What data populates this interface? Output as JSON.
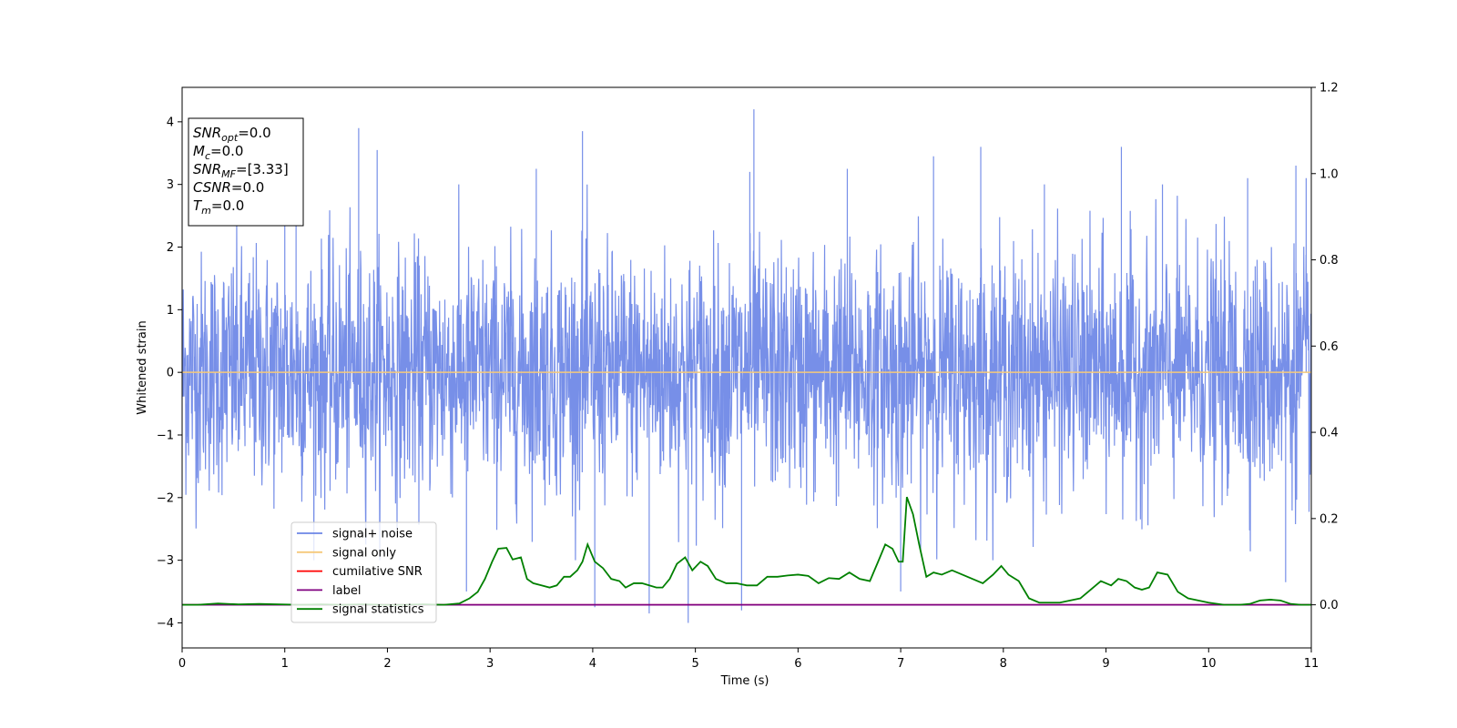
{
  "chart_data": {
    "type": "line",
    "xlabel": "Time (s)",
    "ylabel": "Whitened strain",
    "xlim": [
      0,
      11
    ],
    "ylim": [
      -4.4,
      4.55
    ],
    "y2lim": [
      -0.1,
      1.2
    ],
    "x_ticks": [
      0,
      1,
      2,
      3,
      4,
      5,
      6,
      7,
      8,
      9,
      10,
      11
    ],
    "y_ticks": [
      -4,
      -3,
      -2,
      -1,
      0,
      1,
      2,
      3,
      4
    ],
    "y_tick_labels": [
      "−4",
      "−3",
      "−2",
      "−1",
      "0",
      "1",
      "2",
      "3",
      "4"
    ],
    "y2_ticks": [
      0.0,
      0.2,
      0.4,
      0.6,
      0.8,
      1.0,
      1.2
    ],
    "y2_tick_labels": [
      "0.0",
      "0.2",
      "0.4",
      "0.6",
      "0.8",
      "1.0",
      "1.2"
    ],
    "grid": false,
    "legend_position": "lower-left",
    "colors": {
      "noise": "#6b86e6",
      "signal": "#f5c97a",
      "snr": "#ff0000",
      "label": "#800080",
      "stats": "#008000"
    },
    "series": [
      {
        "name": "signal+ noise",
        "axis": "left",
        "kind": "noise",
        "description_values": "noisy whitened strain oscillating about 0 with amplitude up to about ±4",
        "peaks": [
          {
            "x": 1.0,
            "y": 2.7
          },
          {
            "x": 1.11,
            "y": 3.3
          },
          {
            "x": 1.72,
            "y": 3.9
          },
          {
            "x": 1.9,
            "y": 3.55
          },
          {
            "x": 2.77,
            "y": -3.5
          },
          {
            "x": 3.45,
            "y": 3.25
          },
          {
            "x": 3.9,
            "y": 3.85
          },
          {
            "x": 4.02,
            "y": -3.75
          },
          {
            "x": 4.55,
            "y": -3.85
          },
          {
            "x": 4.93,
            "y": -4.0
          },
          {
            "x": 5.45,
            "y": -3.8
          },
          {
            "x": 5.57,
            "y": 4.2
          },
          {
            "x": 5.53,
            "y": 3.2
          },
          {
            "x": 6.48,
            "y": 3.25
          },
          {
            "x": 7.0,
            "y": -3.5
          },
          {
            "x": 7.32,
            "y": 3.45
          },
          {
            "x": 7.78,
            "y": 3.6
          },
          {
            "x": 8.4,
            "y": 3.0
          },
          {
            "x": 9.15,
            "y": 3.6
          },
          {
            "x": 9.55,
            "y": 3.0
          },
          {
            "x": 10.38,
            "y": 3.1
          },
          {
            "x": 10.75,
            "y": -3.35
          },
          {
            "x": 10.85,
            "y": 3.3
          },
          {
            "x": 10.95,
            "y": 3.1
          }
        ]
      },
      {
        "name": "signal only",
        "axis": "left",
        "x": [
          0,
          11
        ],
        "y": [
          0,
          0
        ]
      },
      {
        "name": "cumilative SNR",
        "axis": "right",
        "x": [
          0,
          11
        ],
        "y": [
          0,
          0
        ]
      },
      {
        "name": "label",
        "axis": "right",
        "x": [
          0,
          11
        ],
        "y": [
          0,
          0
        ]
      },
      {
        "name": "signal statistics",
        "axis": "right",
        "x": [
          0,
          0.15,
          0.35,
          0.55,
          0.75,
          0.95,
          1.15,
          1.35,
          1.55,
          1.75,
          1.95,
          2.15,
          2.35,
          2.55,
          2.7,
          2.8,
          2.88,
          2.95,
          3.02,
          3.08,
          3.16,
          3.22,
          3.3,
          3.36,
          3.42,
          3.5,
          3.58,
          3.65,
          3.72,
          3.78,
          3.85,
          3.9,
          3.95,
          4.02,
          4.1,
          4.18,
          4.26,
          4.32,
          4.4,
          4.48,
          4.55,
          4.62,
          4.68,
          4.75,
          4.82,
          4.9,
          4.97,
          5.05,
          5.12,
          5.2,
          5.3,
          5.4,
          5.5,
          5.6,
          5.7,
          5.8,
          5.9,
          6.0,
          6.1,
          6.2,
          6.3,
          6.4,
          6.5,
          6.6,
          6.7,
          6.78,
          6.85,
          6.92,
          6.98,
          7.02,
          7.06,
          7.12,
          7.18,
          7.25,
          7.32,
          7.4,
          7.5,
          7.6,
          7.7,
          7.8,
          7.9,
          7.98,
          8.05,
          8.15,
          8.25,
          8.35,
          8.45,
          8.55,
          8.65,
          8.75,
          8.85,
          8.95,
          9.05,
          9.12,
          9.2,
          9.28,
          9.35,
          9.42,
          9.5,
          9.6,
          9.7,
          9.8,
          9.9,
          10.0,
          10.15,
          10.3,
          10.4,
          10.5,
          10.6,
          10.7,
          10.8,
          10.9,
          11.0
        ],
        "y": [
          0.0,
          0.0,
          0.003,
          0.001,
          0.002,
          0.001,
          0.0,
          0.001,
          0.0,
          0.001,
          0.0,
          0.0,
          0.001,
          0.0,
          0.003,
          0.015,
          0.03,
          0.06,
          0.1,
          0.13,
          0.132,
          0.105,
          0.11,
          0.06,
          0.05,
          0.045,
          0.04,
          0.045,
          0.065,
          0.065,
          0.08,
          0.1,
          0.14,
          0.1,
          0.085,
          0.06,
          0.055,
          0.04,
          0.05,
          0.05,
          0.045,
          0.04,
          0.04,
          0.06,
          0.095,
          0.11,
          0.08,
          0.1,
          0.09,
          0.06,
          0.05,
          0.05,
          0.045,
          0.045,
          0.065,
          0.065,
          0.068,
          0.07,
          0.067,
          0.05,
          0.062,
          0.06,
          0.075,
          0.06,
          0.055,
          0.1,
          0.14,
          0.13,
          0.1,
          0.1,
          0.25,
          0.21,
          0.14,
          0.065,
          0.075,
          0.07,
          0.08,
          0.07,
          0.06,
          0.05,
          0.07,
          0.09,
          0.07,
          0.055,
          0.015,
          0.005,
          0.005,
          0.005,
          0.01,
          0.015,
          0.035,
          0.055,
          0.045,
          0.06,
          0.055,
          0.04,
          0.035,
          0.04,
          0.075,
          0.07,
          0.03,
          0.015,
          0.01,
          0.005,
          0.0,
          0.0,
          0.002,
          0.01,
          0.012,
          0.01,
          0.002,
          0.0,
          0.0
        ]
      }
    ],
    "legend": [
      "signal+ noise",
      "signal only",
      "cumilative SNR",
      "label",
      "signal statistics"
    ],
    "annotation": {
      "lines": [
        {
          "main": "SNR",
          "sub": "opt",
          "value": "=0.0"
        },
        {
          "main": "M",
          "sub": "c",
          "value": "=0.0"
        },
        {
          "main": "SNR",
          "sub": "MF",
          "value": "=[3.33]"
        },
        {
          "main": "CSNR",
          "sub": "",
          "value": "=0.0"
        },
        {
          "main": "T",
          "sub": "m",
          "value": "=0.0"
        }
      ]
    }
  }
}
